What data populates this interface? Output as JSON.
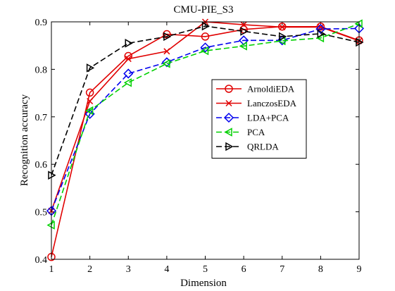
{
  "chart_data": {
    "type": "line",
    "title": "CMU-PIE_S3",
    "xlabel": "Dimension",
    "ylabel": "Recognition accuracy",
    "xlim": [
      1,
      9
    ],
    "ylim": [
      0.4,
      0.9
    ],
    "x_ticks": [
      "1",
      "2",
      "3",
      "4",
      "5",
      "6",
      "7",
      "8",
      "9"
    ],
    "y_ticks": [
      "0.4",
      "0.5",
      "0.6",
      "0.7",
      "0.8",
      "0.9"
    ],
    "grid": false,
    "legend_position": "center-right",
    "x": [
      1,
      2,
      3,
      4,
      5,
      6,
      7,
      8,
      9
    ],
    "series": [
      {
        "name": "ArnoldiEDA",
        "color": "#e00000",
        "line": "solid",
        "marker": "circle",
        "values": [
          0.405,
          0.751,
          0.828,
          0.874,
          0.869,
          0.884,
          0.89,
          0.89,
          0.861
        ]
      },
      {
        "name": "LanczosEDA",
        "color": "#e00000",
        "line": "solid",
        "marker": "x",
        "values": [
          0.502,
          0.733,
          0.822,
          0.838,
          0.9,
          0.894,
          0.889,
          0.889,
          0.86
        ]
      },
      {
        "name": "LDA+PCA",
        "color": "#0000ee",
        "line": "dashed",
        "marker": "diamond",
        "values": [
          0.502,
          0.706,
          0.791,
          0.815,
          0.846,
          0.861,
          0.861,
          0.885,
          0.886
        ]
      },
      {
        "name": "PCA",
        "color": "#00d000",
        "line": "dashed",
        "marker": "triangle-left",
        "values": [
          0.472,
          0.713,
          0.772,
          0.812,
          0.839,
          0.849,
          0.86,
          0.866,
          0.896
        ]
      },
      {
        "name": "QRLDA",
        "color": "#000000",
        "line": "dashed",
        "marker": "triangle-right",
        "values": [
          0.577,
          0.803,
          0.855,
          0.869,
          0.891,
          0.88,
          0.869,
          0.875,
          0.857
        ]
      }
    ]
  }
}
